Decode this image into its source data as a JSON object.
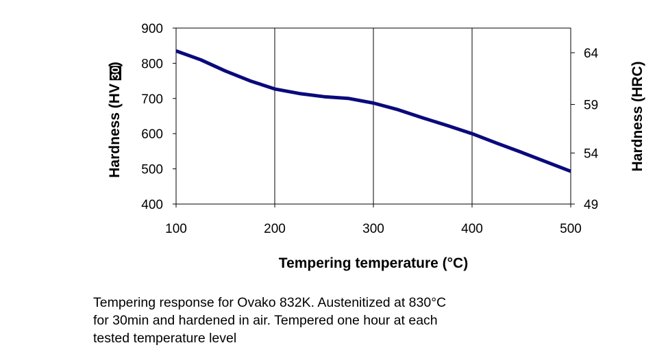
{
  "chart_data": {
    "type": "line",
    "title": "",
    "xlabel": "Tempering temperature (°C)",
    "ylabel": "Hardness (HV 30)",
    "ylabel_text": "Hardness (HV ",
    "ylabel_boxed": "30",
    "ylabel_close": ")",
    "y2label": "Hardness (HRC)",
    "xlim": [
      100,
      500
    ],
    "ylim": [
      400,
      900
    ],
    "x_ticks": [
      100,
      200,
      300,
      400,
      500
    ],
    "y_ticks": [
      400,
      500,
      600,
      700,
      800,
      900
    ],
    "y2_ticks": [
      {
        "label": "64",
        "hv": 830
      },
      {
        "label": "59",
        "hv": 683
      },
      {
        "label": "54",
        "hv": 545
      },
      {
        "label": "49",
        "hv": 400
      }
    ],
    "grid": true,
    "series": [
      {
        "color": "#0a0a7c",
        "x": [
          100,
          125,
          150,
          175,
          200,
          225,
          250,
          275,
          300,
          325,
          350,
          375,
          400,
          425,
          450,
          475,
          500
        ],
        "y": [
          835,
          810,
          778,
          750,
          727,
          714,
          705,
          700,
          687,
          668,
          645,
          623,
          600,
          573,
          547,
          520,
          493
        ]
      }
    ]
  },
  "caption": {
    "lines": [
      "Tempering response for Ovako 832K. Austenitized at 830°C",
      "for 30min and hardened in air. Tempered one hour at each",
      "tested temperature level"
    ]
  }
}
